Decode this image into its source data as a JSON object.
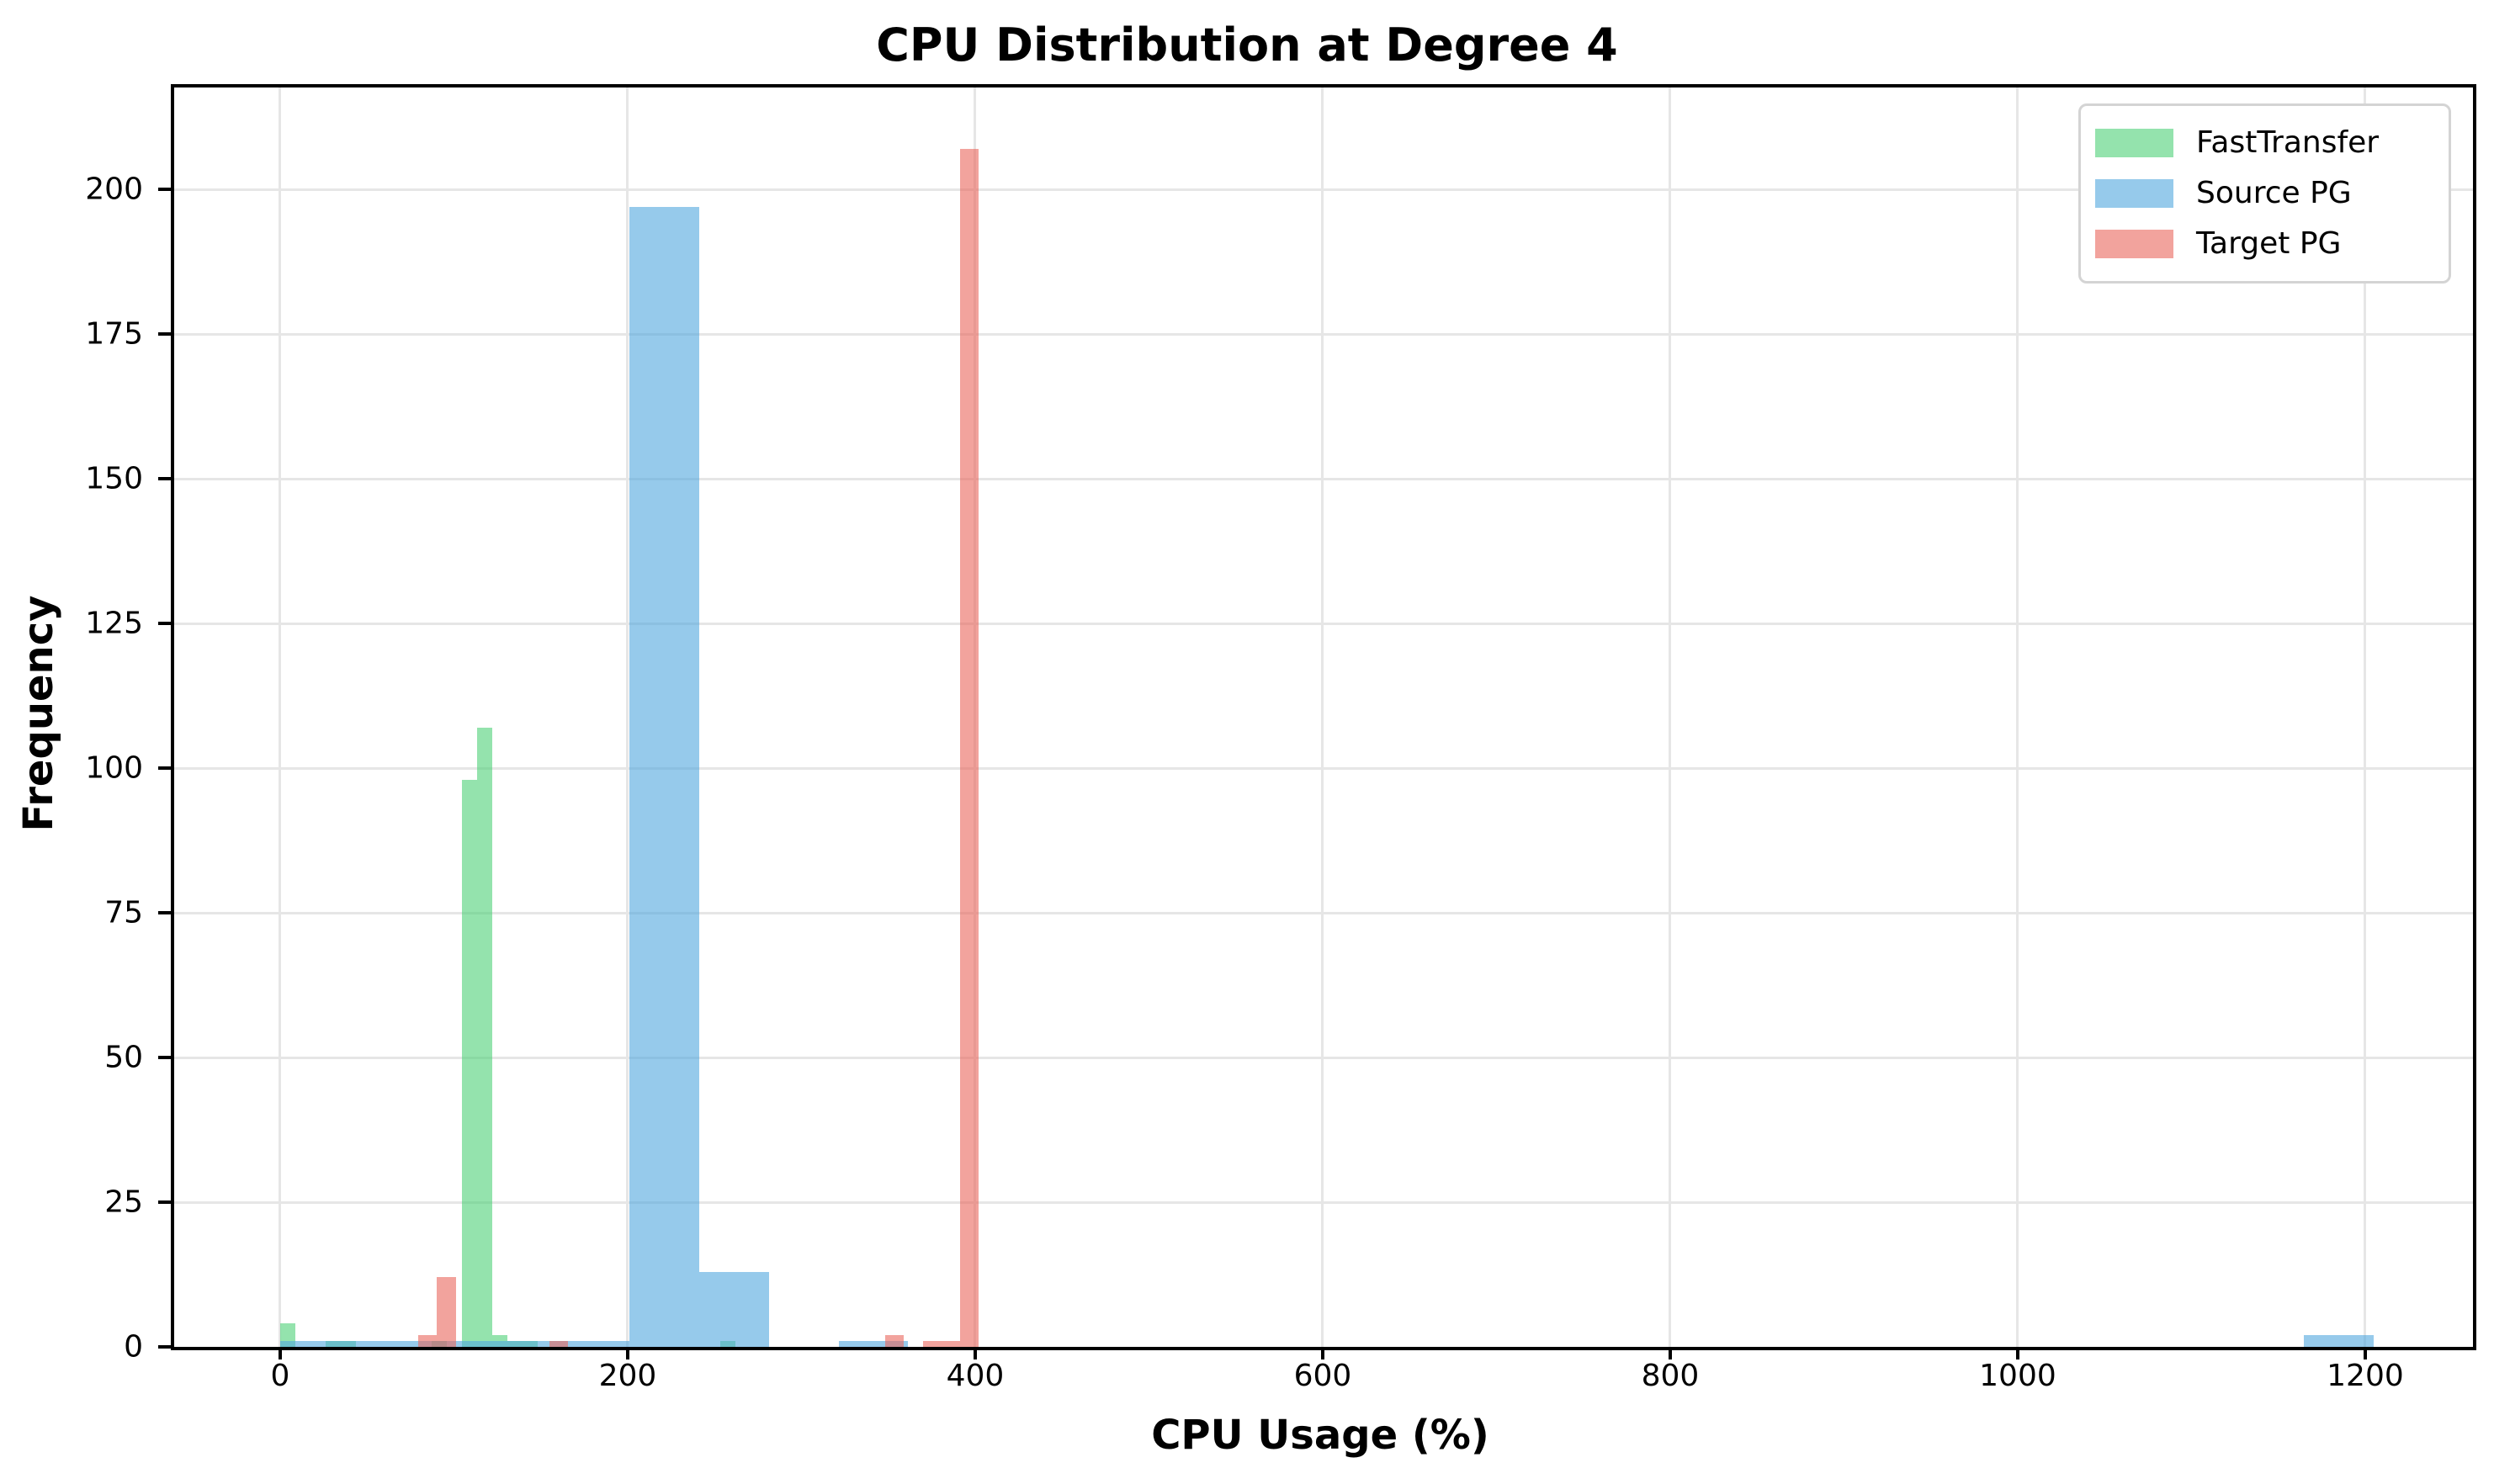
{
  "chart_data": {
    "type": "bar",
    "subtype": "overlapping-histograms",
    "title": "CPU Distribution at Degree 4",
    "xlabel": "CPU Usage (%)",
    "ylabel": "Frequency",
    "xlim": [
      -61,
      1262
    ],
    "ylim": [
      0,
      217.6
    ],
    "xticks": [
      0,
      200,
      400,
      600,
      800,
      1000,
      1200
    ],
    "yticks": [
      0,
      25,
      50,
      75,
      100,
      125,
      150,
      175,
      200
    ],
    "grid": "on",
    "legend_position": "upper right",
    "background": "#ffffff",
    "grid_color": "#e6e6e6",
    "spine_color": "#000000",
    "series": [
      {
        "name": "FastTransfer",
        "color_rgba": [
          77,
          208,
          118,
          0.6
        ],
        "color_on_white": "#94e3ad",
        "bins": [
          {
            "x0": 0.0,
            "x1": 8.73,
            "count": 4
          },
          {
            "x0": 26.18,
            "x1": 34.91,
            "count": 1
          },
          {
            "x0": 34.91,
            "x1": 43.64,
            "count": 1
          },
          {
            "x0": 87.27,
            "x1": 96.0,
            "count": 1
          },
          {
            "x0": 104.73,
            "x1": 113.45,
            "count": 98
          },
          {
            "x0": 113.45,
            "x1": 122.18,
            "count": 107
          },
          {
            "x0": 122.18,
            "x1": 130.91,
            "count": 2
          },
          {
            "x0": 130.91,
            "x1": 139.64,
            "count": 1
          },
          {
            "x0": 139.64,
            "x1": 148.36,
            "count": 1
          },
          {
            "x0": 253.09,
            "x1": 261.82,
            "count": 1
          }
        ]
      },
      {
        "name": "Source PG",
        "color_rgba": [
          80,
          167,
          222,
          0.6
        ],
        "color_on_white": "#96caeb",
        "bins": [
          {
            "x0": 0.0,
            "x1": 40.17,
            "count": 1
          },
          {
            "x0": 40.17,
            "x1": 80.33,
            "count": 1
          },
          {
            "x0": 80.33,
            "x1": 120.5,
            "count": 1
          },
          {
            "x0": 120.5,
            "x1": 160.67,
            "count": 1
          },
          {
            "x0": 160.67,
            "x1": 200.83,
            "count": 1
          },
          {
            "x0": 200.83,
            "x1": 241.0,
            "count": 197
          },
          {
            "x0": 241.0,
            "x1": 281.17,
            "count": 13
          },
          {
            "x0": 321.33,
            "x1": 361.5,
            "count": 1
          },
          {
            "x0": 1164.83,
            "x1": 1205.0,
            "count": 2
          }
        ]
      },
      {
        "name": "Target PG",
        "color_rgba": [
          233,
          102,
          92,
          0.6
        ],
        "color_on_white": "#f2a39d",
        "bins": [
          {
            "x0": 79.5,
            "x1": 90.25,
            "count": 2
          },
          {
            "x0": 90.25,
            "x1": 101.0,
            "count": 12
          },
          {
            "x0": 154.75,
            "x1": 165.5,
            "count": 1
          },
          {
            "x0": 348.25,
            "x1": 359.0,
            "count": 2
          },
          {
            "x0": 369.75,
            "x1": 380.5,
            "count": 1
          },
          {
            "x0": 380.5,
            "x1": 391.25,
            "count": 1
          },
          {
            "x0": 391.25,
            "x1": 402.0,
            "count": 207
          }
        ]
      }
    ]
  }
}
